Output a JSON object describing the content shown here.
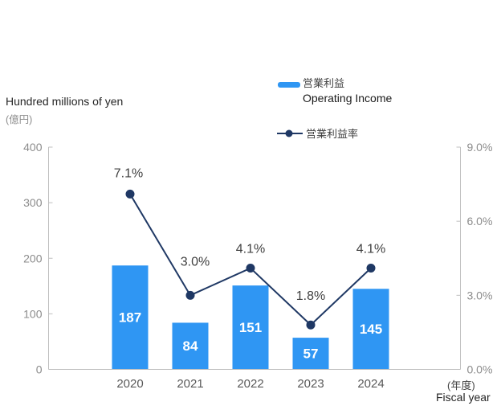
{
  "axis_titles": {
    "left_en": "Hundred millions of yen",
    "left_jp": "(億円)",
    "x_jp": "(年度)",
    "x_en": "Fiscal year"
  },
  "legend": {
    "bar_label_jp": "営業利益",
    "bar_label_en": "Operating Income",
    "line_label_jp": "営業利益率"
  },
  "colors": {
    "bar": "#2F96F3",
    "line": "#1F3864",
    "axis": "#BFBFBF",
    "tick_label": "#8C8C8C",
    "category_label": "#595959",
    "point_label": "#404040",
    "bar_value_label": "#FFFFFF"
  },
  "chart_data": {
    "type": "combo-bar-line",
    "categories": [
      "2020",
      "2021",
      "2022",
      "2023",
      "2024"
    ],
    "series": [
      {
        "name": "営業利益 Operating Income",
        "type": "bar",
        "axis": "left",
        "values": [
          187,
          84,
          151,
          57,
          145
        ],
        "data_labels": [
          "187",
          "84",
          "151",
          "57",
          "145"
        ]
      },
      {
        "name": "営業利益率",
        "type": "line",
        "axis": "right",
        "values": [
          7.1,
          3.0,
          4.1,
          1.8,
          4.1
        ],
        "data_labels": [
          "7.1%",
          "3.0%",
          "4.1%",
          "1.8%",
          "4.1%"
        ]
      }
    ],
    "left_axis": {
      "title": "Hundred millions of yen (億円)",
      "min": 0,
      "max": 400,
      "tick_interval": 100,
      "tick_labels": [
        "400",
        "300",
        "200",
        "100",
        "0"
      ]
    },
    "right_axis": {
      "min": 0,
      "max": 9,
      "tick_interval": 3,
      "tick_labels": [
        "9.0%",
        "6.0%",
        "3.0%",
        "0.0%"
      ]
    },
    "x_axis": {
      "title_jp": "(年度)",
      "title_en": "Fiscal year"
    },
    "grid": false,
    "legend_position": "top-right"
  }
}
